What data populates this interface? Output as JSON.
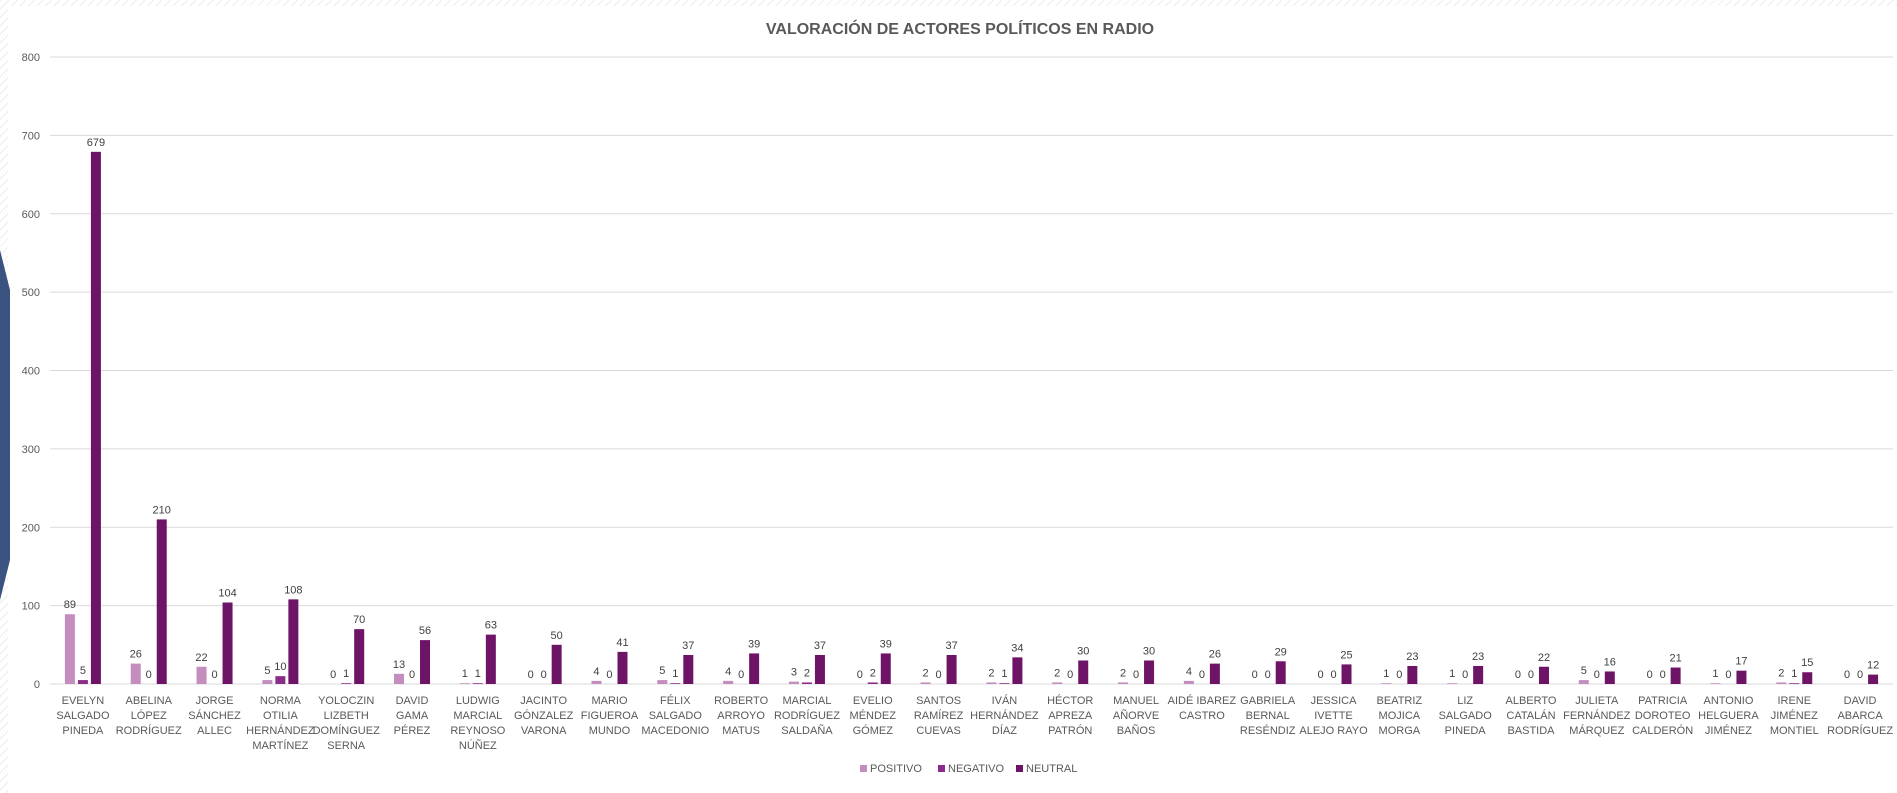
{
  "colors": {
    "positivo": "#c38dbd",
    "negativo": "#8b2b8a",
    "neutral": "#6e1466",
    "gridline": "#d9d9d9",
    "accent_left": "#3b5380"
  },
  "chart_data": {
    "type": "bar",
    "title": "VALORACIÓN DE ACTORES POLÍTICOS EN RADIO",
    "xlabel": "",
    "ylabel": "",
    "ylim": [
      0,
      800
    ],
    "yticks": [
      0,
      100,
      200,
      300,
      400,
      500,
      600,
      700,
      800
    ],
    "grid": true,
    "legend_position": "bottom",
    "categories": [
      [
        "EVELYN",
        "SALGADO",
        "PINEDA"
      ],
      [
        "ABELINA",
        "LÓPEZ",
        "RODRÍGUEZ"
      ],
      [
        "JORGE",
        "SÁNCHEZ",
        "ALLEC"
      ],
      [
        "NORMA",
        "OTILIA",
        "HERNÁNDEZ",
        "MARTÍNEZ"
      ],
      [
        "YOLOCZIN",
        "LIZBETH",
        "DOMÍNGUEZ",
        "SERNA"
      ],
      [
        "DAVID",
        "GAMA",
        "PÉREZ"
      ],
      [
        "LUDWIG",
        "MARCIAL",
        "REYNOSO",
        "NÚÑEZ"
      ],
      [
        "JACINTO",
        "GÓNZALEZ",
        "VARONA"
      ],
      [
        "MARIO",
        "FIGUEROA",
        "MUNDO"
      ],
      [
        "FÉLIX",
        "SALGADO",
        "MACEDONIO"
      ],
      [
        "ROBERTO",
        "ARROYO",
        "MATUS"
      ],
      [
        "MARCIAL",
        "RODRÍGUEZ",
        "SALDAÑA"
      ],
      [
        "EVELIO",
        "MÉNDEZ",
        "GÓMEZ"
      ],
      [
        "SANTOS",
        "RAMÍREZ",
        "CUEVAS"
      ],
      [
        "IVÁN",
        "HERNÁNDEZ",
        "DÍAZ"
      ],
      [
        "HÉCTOR",
        "APREZA",
        "PATRÓN"
      ],
      [
        "MANUEL",
        "AÑORVE",
        "BAÑOS"
      ],
      [
        "AIDÉ IBAREZ",
        "CASTRO"
      ],
      [
        "GABRIELA",
        "BERNAL",
        "RESÉNDIZ"
      ],
      [
        "JESSICA",
        "IVETTE",
        "ALEJO RAYO"
      ],
      [
        "BEATRIZ",
        "MOJICA",
        "MORGA"
      ],
      [
        "LIZ",
        "SALGADO",
        "PINEDA"
      ],
      [
        "ALBERTO",
        "CATALÁN",
        "BASTIDA"
      ],
      [
        "JULIETA",
        "FERNÁNDEZ",
        "MÁRQUEZ"
      ],
      [
        "PATRICIA",
        "DOROTEO",
        "CALDERÓN"
      ],
      [
        "ANTONIO",
        "HELGUERA",
        "JIMÉNEZ"
      ],
      [
        "IRENE",
        "JIMÉNEZ",
        "MONTIEL"
      ],
      [
        "DAVID",
        "ABARCA",
        "RODRÍGUEZ"
      ]
    ],
    "series": [
      {
        "name": "POSITIVO",
        "color": "#c38dbd",
        "values": [
          89,
          26,
          22,
          5,
          0,
          13,
          1,
          0,
          4,
          5,
          4,
          3,
          0,
          2,
          2,
          2,
          2,
          4,
          0,
          0,
          1,
          1,
          0,
          5,
          0,
          1,
          2,
          0
        ]
      },
      {
        "name": "NEGATIVO",
        "color": "#8b2b8a",
        "values": [
          5,
          0,
          0,
          10,
          1,
          0,
          1,
          0,
          0,
          1,
          0,
          2,
          2,
          0,
          1,
          0,
          0,
          0,
          0,
          0,
          0,
          0,
          0,
          0,
          0,
          0,
          1,
          0
        ]
      },
      {
        "name": "NEUTRAL",
        "color": "#6e1466",
        "values": [
          679,
          210,
          104,
          108,
          70,
          56,
          63,
          50,
          41,
          37,
          39,
          37,
          39,
          37,
          34,
          30,
          30,
          26,
          29,
          25,
          23,
          23,
          22,
          16,
          21,
          17,
          15,
          12
        ]
      }
    ]
  }
}
